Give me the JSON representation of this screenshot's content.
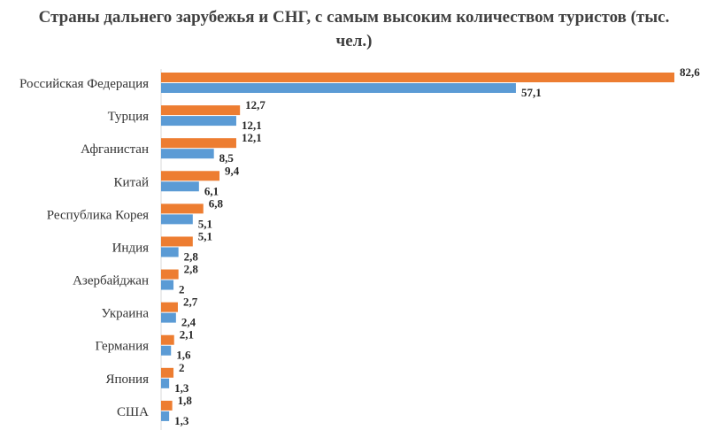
{
  "chart_data": {
    "type": "bar",
    "orientation": "horizontal",
    "title": "Страны дальнего зарубежья и СНГ, с самым высоким количеством туристов (тыс. чел.)",
    "xlabel": "",
    "ylabel": "",
    "categories": [
      "Российская Федерация",
      "Турция",
      "Афганистан",
      "Китай",
      "Республика Корея",
      "Индия",
      "Азербайджан",
      "Украина",
      "Германия",
      "Япония",
      "США"
    ],
    "series": [
      {
        "color": "#ED7D31",
        "values": [
          82.6,
          12.7,
          12.1,
          9.4,
          6.8,
          5.1,
          2.8,
          2.7,
          2.1,
          2,
          1.8
        ],
        "labels": [
          "82,6",
          "12,7",
          "12,1",
          "9,4",
          "6,8",
          "5,1",
          "2,8",
          "2,7",
          "2,1",
          "2",
          "1,8"
        ]
      },
      {
        "color": "#5B9BD5",
        "values": [
          57.1,
          12.1,
          8.5,
          6.1,
          5.1,
          2.8,
          2,
          2.4,
          1.6,
          1.3,
          1.3
        ],
        "labels": [
          "57,1",
          "12,1",
          "8,5",
          "6,1",
          "5,1",
          "2,8",
          "2",
          "2,4",
          "1,6",
          "1,3",
          "1,3"
        ]
      }
    ],
    "grid": false,
    "legend": "none"
  }
}
